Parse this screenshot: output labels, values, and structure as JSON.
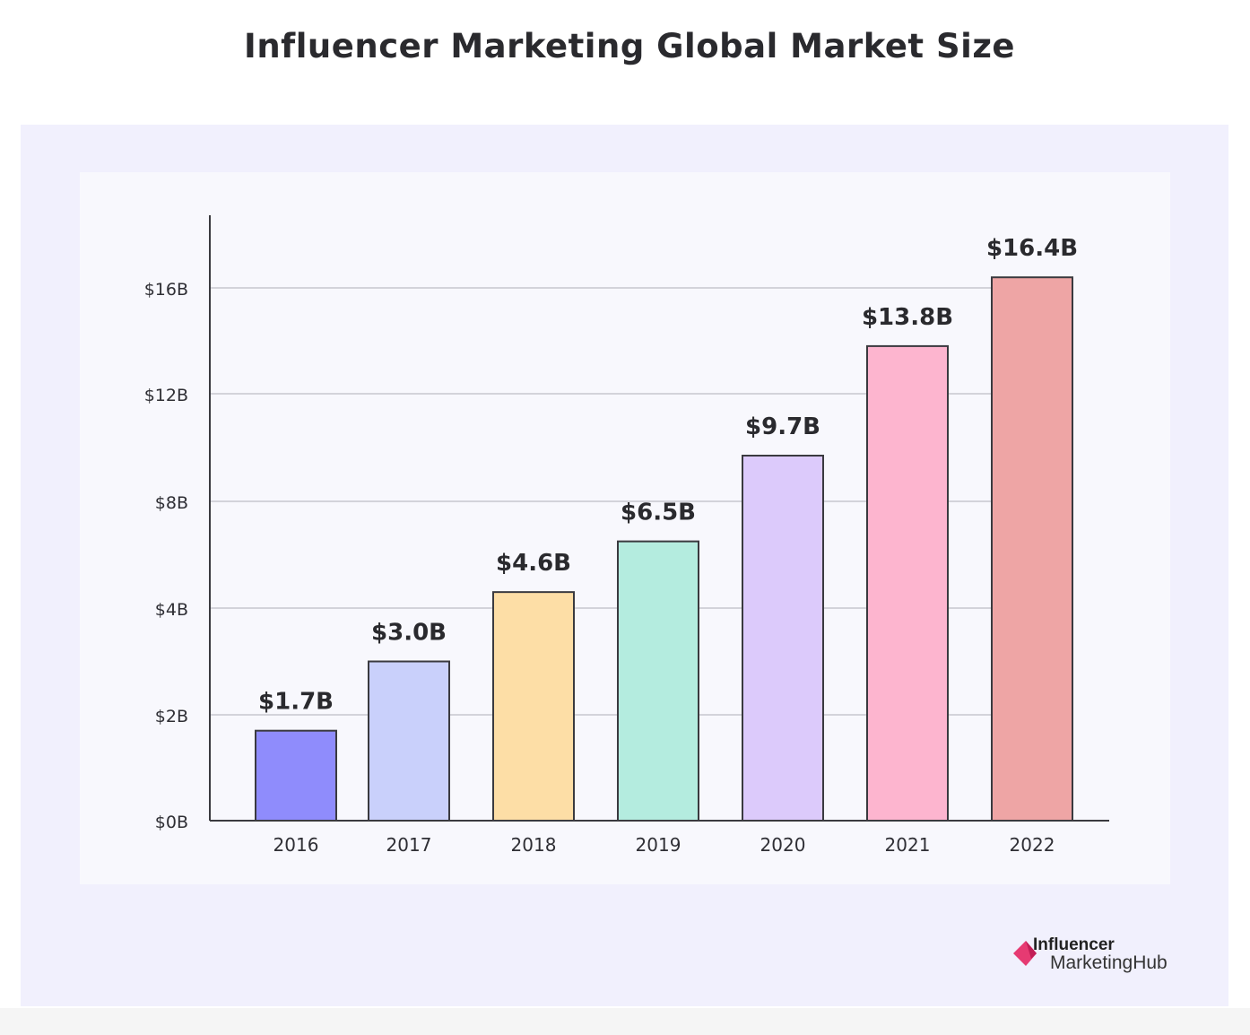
{
  "title": "Influencer Marketing Global Market Size",
  "logo": {
    "line1": "Influencer",
    "line2": "MarketingHub"
  },
  "chart_data": {
    "type": "bar",
    "title": "Influencer Marketing Global Market Size",
    "xlabel": "",
    "ylabel": "",
    "categories": [
      "2016",
      "2017",
      "2018",
      "2019",
      "2020",
      "2021",
      "2022"
    ],
    "values": [
      1.7,
      3.0,
      4.6,
      6.5,
      9.7,
      13.8,
      16.4
    ],
    "data_labels": [
      "$1.7B",
      "$3.0B",
      "$4.6B",
      "$6.5B",
      "$9.7B",
      "$13.8B",
      "$16.4B"
    ],
    "colors": [
      "#8f8cfc",
      "#c9d0fb",
      "#fddea6",
      "#b4ecdf",
      "#dccafb",
      "#fdb5cf",
      "#eea5a5"
    ],
    "y_ticks": [
      0,
      2,
      4,
      8,
      12,
      16
    ],
    "y_tick_labels": [
      "$0B",
      "$2B",
      "$4B",
      "$8B",
      "$12B",
      "$16B"
    ],
    "ylim": [
      0,
      18
    ],
    "grid": true,
    "legend": "none"
  }
}
